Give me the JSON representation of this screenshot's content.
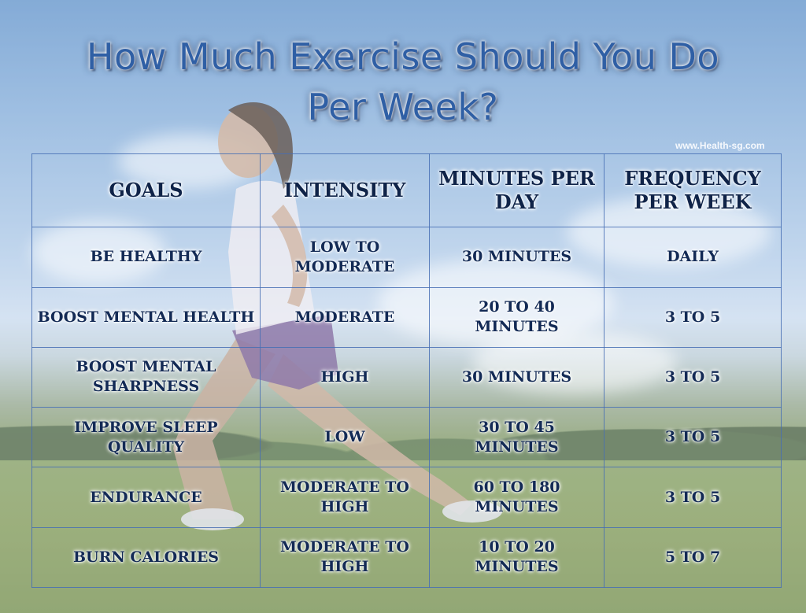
{
  "title": {
    "line1": "How Much Exercise Should You Do",
    "line2": "Per Week?"
  },
  "watermark": "www.Health-sg.com",
  "table": {
    "headers": [
      "Goals",
      "Intensity",
      "Minutes per day",
      "Frequency per week"
    ],
    "rows": [
      [
        "Be healthy",
        "Low to moderate",
        "30 minutes",
        "Daily"
      ],
      [
        "Boost mental health",
        "Moderate",
        "20 to 40 minutes",
        "3 to 5"
      ],
      [
        "Boost mental sharpness",
        "High",
        "30 minutes",
        "3 to 5"
      ],
      [
        "Improve sleep quality",
        "Low",
        "30 to 45 minutes",
        "3 to 5"
      ],
      [
        "Endurance",
        "Moderate to high",
        "60 to 180 minutes",
        "3 to 5"
      ],
      [
        "Burn calories",
        "Moderate to high",
        "10 to 20 minutes",
        "5 to 7"
      ]
    ]
  }
}
